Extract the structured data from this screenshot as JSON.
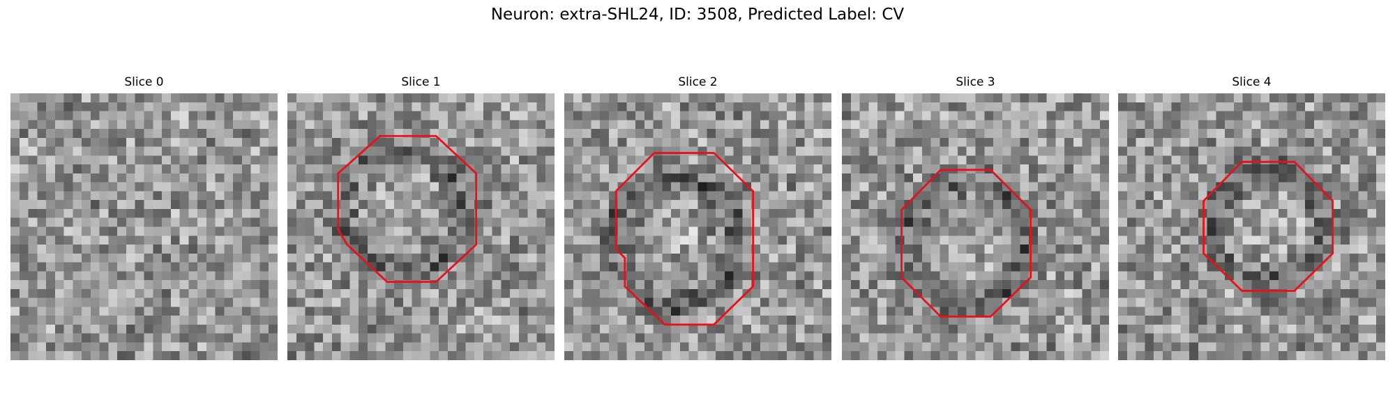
{
  "title": "Neuron: extra-SHL24, ID: 3508, Predicted Label: CV",
  "panels": [
    {
      "title": "Slice 0"
    },
    {
      "title": "Slice 1"
    },
    {
      "title": "Slice 2"
    },
    {
      "title": "Slice 3"
    },
    {
      "title": "Slice 4"
    }
  ]
}
